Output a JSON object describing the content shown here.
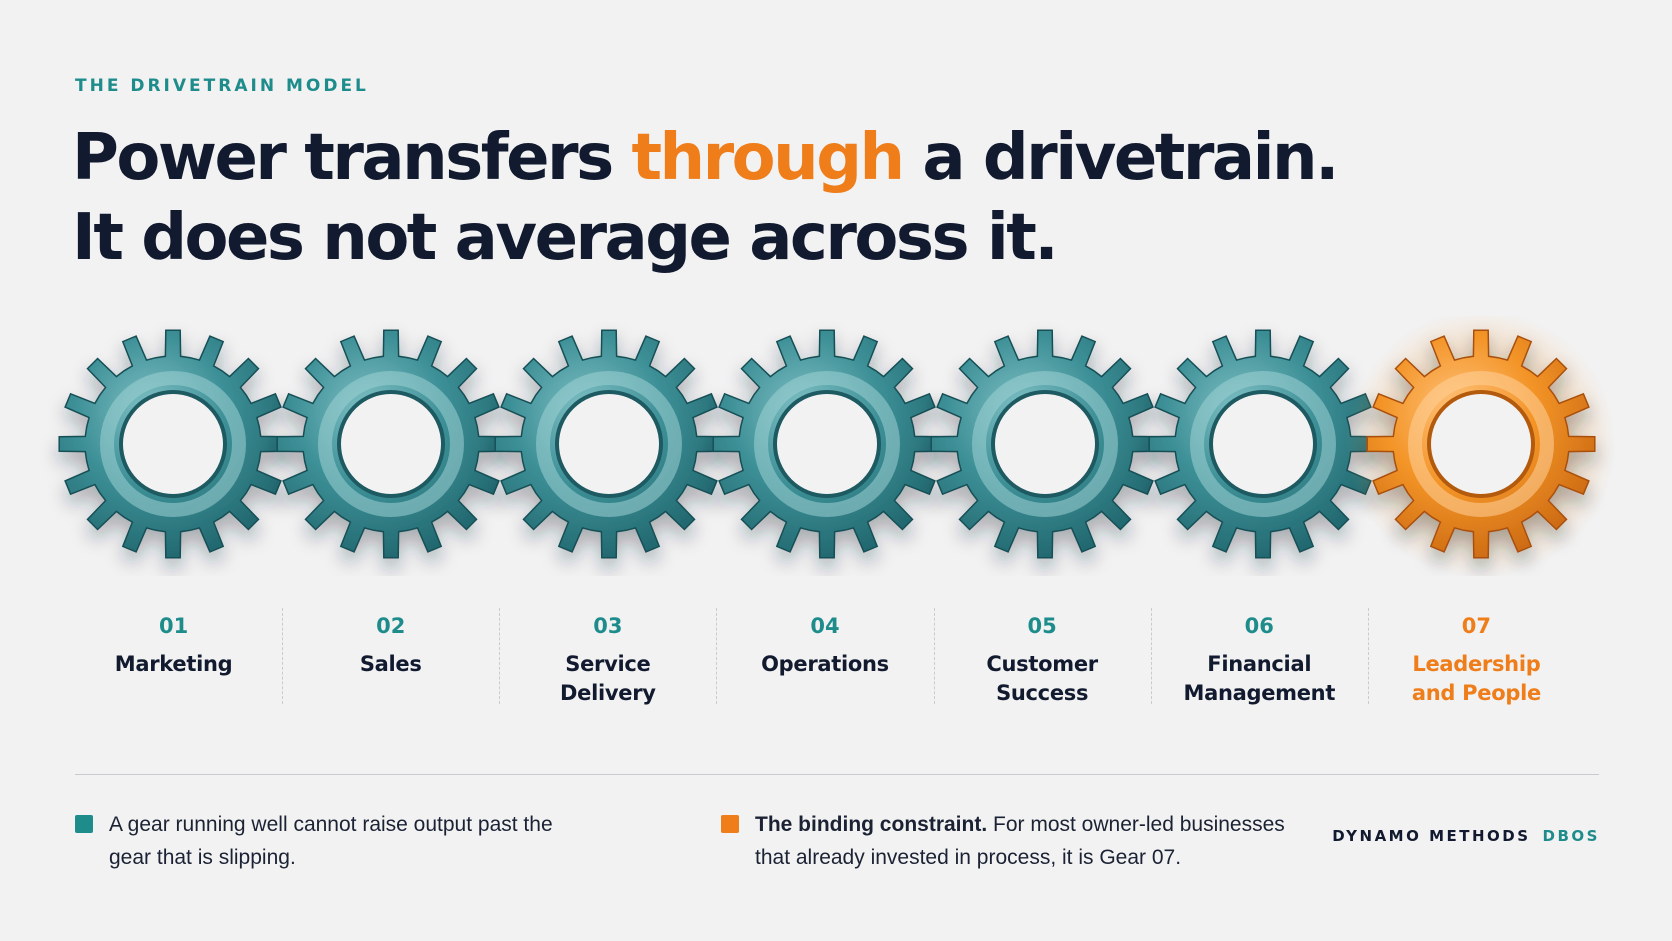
{
  "eyebrow": "THE DRIVETRAIN MODEL",
  "headline": {
    "line1_before": "Power transfers ",
    "line1_accent": "through",
    "line1_after": " a drivetrain.",
    "line2": "It does not average across it."
  },
  "colors": {
    "teal": "#1f8c8c",
    "orange": "#ee7d1a",
    "navy": "#111a2e",
    "background": "#f2f2f3"
  },
  "gears": [
    {
      "number": "01",
      "name": "Marketing",
      "highlight": false,
      "icon": "gear-icon"
    },
    {
      "number": "02",
      "name": "Sales",
      "highlight": false,
      "icon": "gear-icon"
    },
    {
      "number": "03",
      "name": "Service\nDelivery",
      "highlight": false,
      "icon": "gear-icon"
    },
    {
      "number": "04",
      "name": "Operations",
      "highlight": false,
      "icon": "gear-icon"
    },
    {
      "number": "05",
      "name": "Customer\nSuccess",
      "highlight": false,
      "icon": "gear-icon"
    },
    {
      "number": "06",
      "name": "Financial\nManagement",
      "highlight": false,
      "icon": "gear-icon"
    },
    {
      "number": "07",
      "name": "Leadership\nand People",
      "highlight": true,
      "icon": "gear-icon"
    }
  ],
  "notes": {
    "left": "A gear running well cannot raise output past the gear that is slipping.",
    "right_bold": "The binding constraint.",
    "right_text": " For most owner-led businesses that already invested in process, it is Gear 07."
  },
  "brand": {
    "name": "DYNAMO METHODS",
    "code": "DBOS"
  }
}
